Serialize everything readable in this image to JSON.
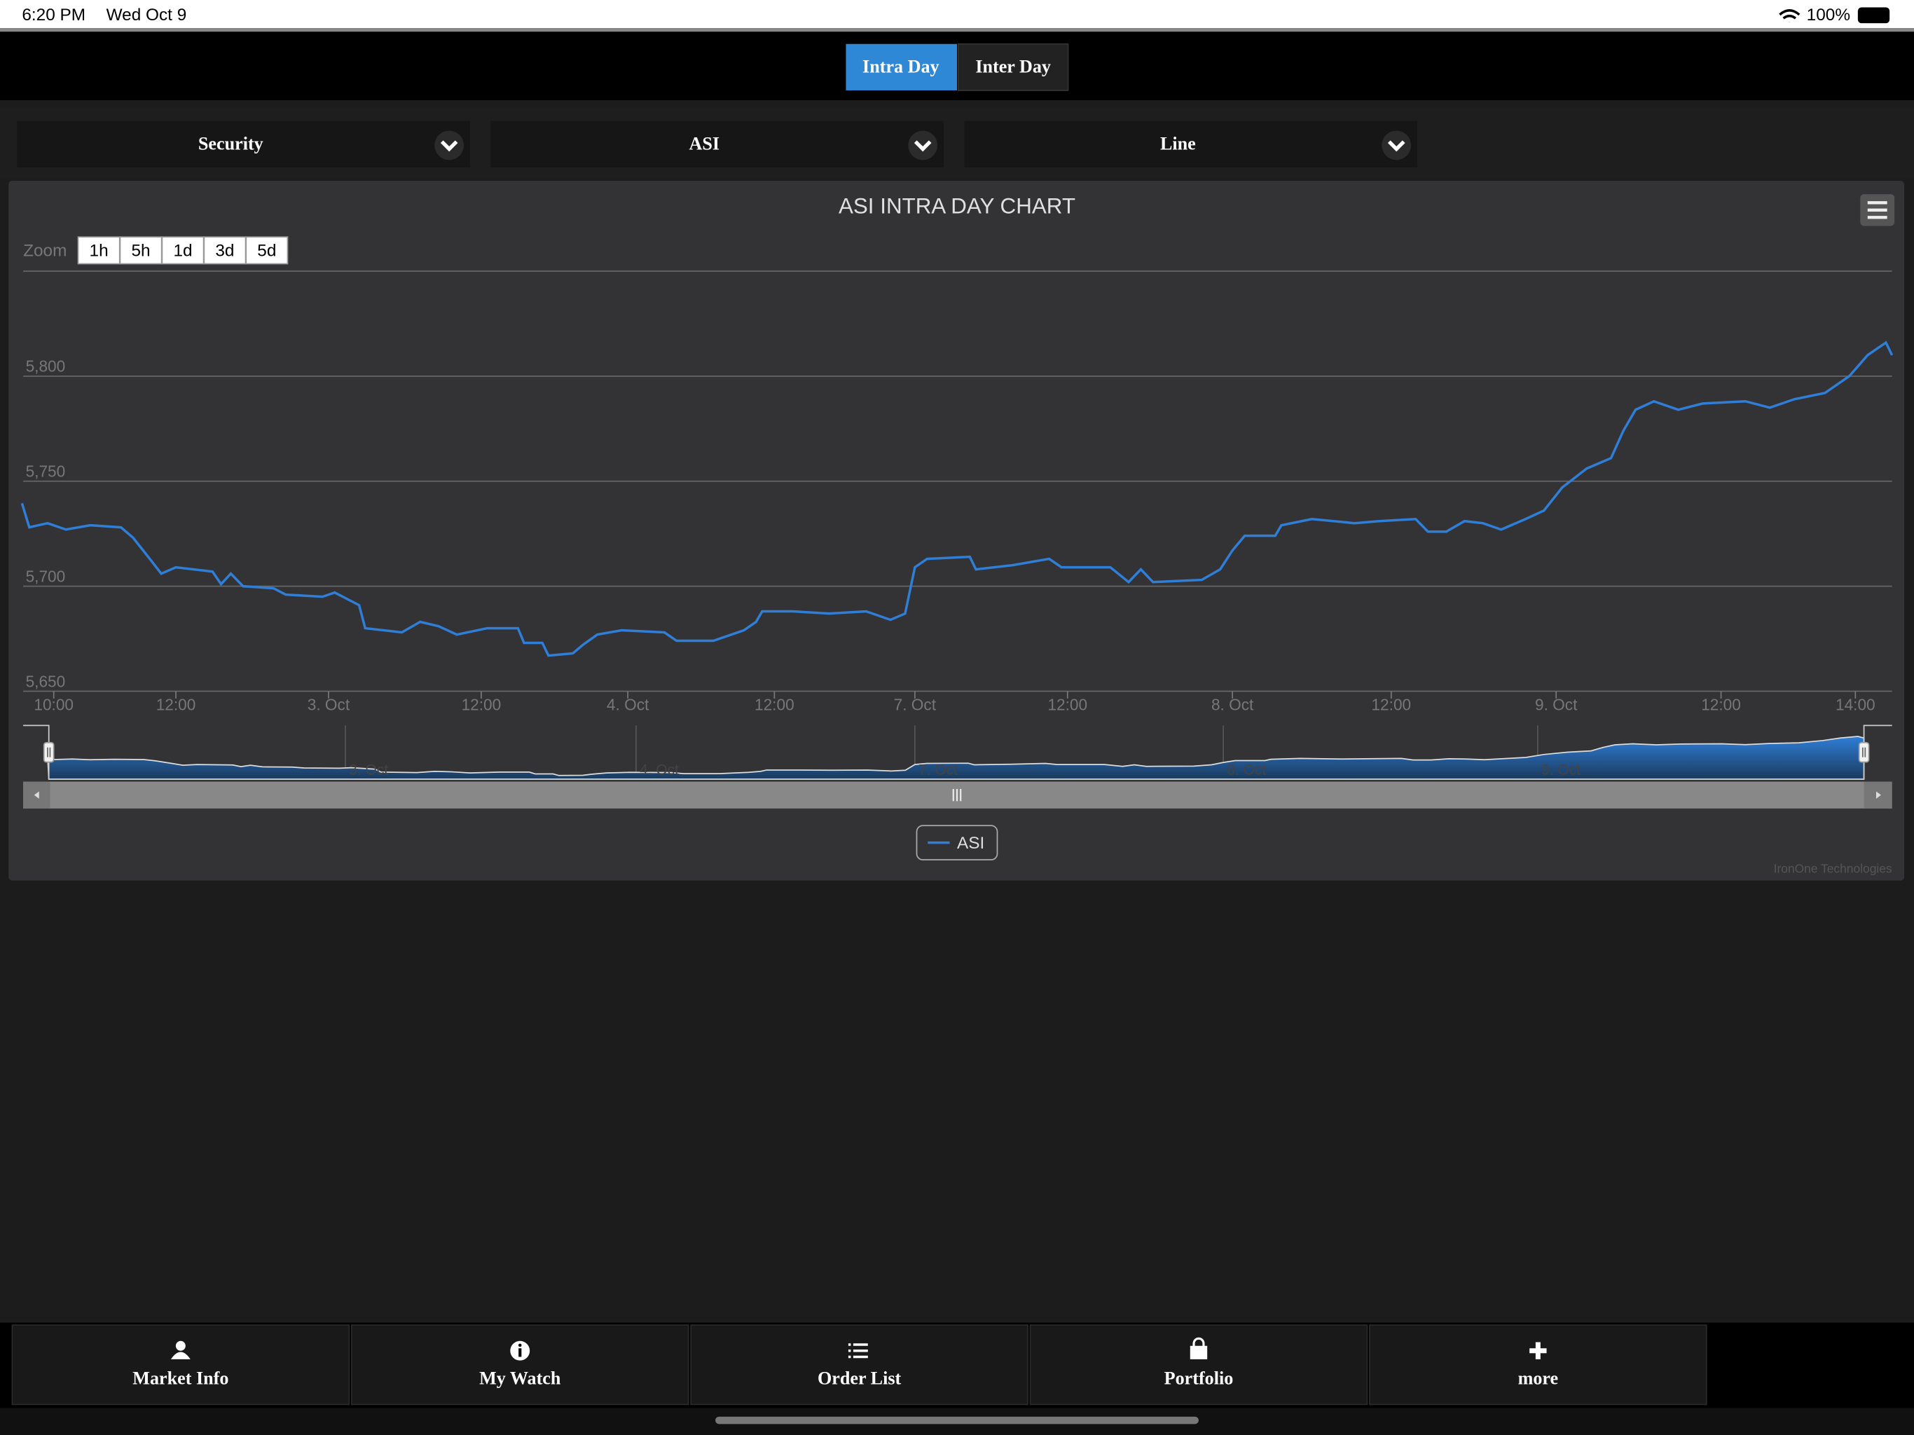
{
  "status_bar": {
    "time": "6:20 PM",
    "date": "Wed Oct 9",
    "battery": "100%"
  },
  "tabs": [
    "Intra Day",
    "Inter Day"
  ],
  "dropdowns": [
    "Security",
    "ASI",
    "Line"
  ],
  "chart_data": {
    "type": "line",
    "title": "ASI INTRA DAY CHART",
    "zoom_label": "Zoom",
    "zoom_buttons": [
      "1h",
      "5h",
      "1d",
      "3d",
      "5d"
    ],
    "x": [
      -0.52,
      -0.4,
      -0.1,
      0.2,
      0.6,
      1.1,
      1.3,
      1.6,
      1.76,
      2,
      2.6,
      2.74,
      2.9,
      3.1,
      3.6,
      3.8,
      4.4,
      4.6,
      5,
      5.1,
      5.7,
      6,
      6.3,
      6.6,
      7.1,
      7.6,
      7.7,
      8,
      8.1,
      8.5,
      8.66,
      8.9,
      9.3,
      10,
      10.2,
      10.8,
      11.3,
      11.5,
      11.6,
      12.1,
      12.7,
      13.3,
      13.7,
      13.94,
      14.1,
      14.3,
      15,
      15.1,
      15.7,
      16.3,
      16.5,
      17.3,
      17.6,
      17.8,
      18,
      18.8,
      19.1,
      19.3,
      19.5,
      20,
      20.1,
      20.6,
      21.3,
      21.7,
      22.3,
      22.5,
      22.8,
      23.1,
      23.4,
      23.7,
      24.1,
      24.4,
      24.7,
      25.1,
      25.5,
      25.7,
      25.9,
      26.2,
      26.6,
      27,
      27.7,
      28.1,
      28.5,
      29,
      29.4,
      29.7,
      30,
      30.1
    ],
    "series": [
      {
        "name": "ASI",
        "color": "#2f7ed8",
        "values": [
          5739.5,
          5728,
          5730,
          5727,
          5729,
          5728,
          5723,
          5712,
          5706,
          5709,
          5707,
          5701,
          5706,
          5700,
          5699,
          5696,
          5695,
          5697,
          5691,
          5680,
          5678,
          5683,
          5681,
          5677,
          5680,
          5680,
          5673,
          5673,
          5667,
          5668,
          5672,
          5677,
          5679,
          5678,
          5674,
          5674,
          5679,
          5683,
          5688,
          5688,
          5687,
          5688,
          5684,
          5687,
          5709,
          5713,
          5714,
          5708,
          5710,
          5713,
          5709,
          5709,
          5702,
          5708,
          5702,
          5703,
          5708,
          5717,
          5724,
          5724,
          5729,
          5732,
          5730,
          5731,
          5732,
          5726,
          5726,
          5731,
          5730,
          5727,
          5732,
          5736,
          5747,
          5756,
          5761,
          5774,
          5784,
          5788,
          5784,
          5787,
          5788,
          5785,
          5789,
          5792,
          5800,
          5810,
          5816,
          5810
        ]
      }
    ],
    "xlim": [
      -0.5,
      30.1
    ],
    "xticks": [
      {
        "value": 0,
        "label": "10:00"
      },
      {
        "value": 2,
        "label": "12:00"
      },
      {
        "value": 4.5,
        "label": "3. Oct"
      },
      {
        "value": 7,
        "label": "12:00"
      },
      {
        "value": 9.4,
        "label": "4. Oct"
      },
      {
        "value": 11.8,
        "label": "12:00"
      },
      {
        "value": 14.1,
        "label": "7. Oct"
      },
      {
        "value": 16.6,
        "label": "12:00"
      },
      {
        "value": 19.3,
        "label": "8. Oct"
      },
      {
        "value": 21.9,
        "label": "12:00"
      },
      {
        "value": 24.6,
        "label": "9. Oct"
      },
      {
        "value": 27.3,
        "label": "12:00"
      },
      {
        "value": 29.5,
        "label": "14:00"
      }
    ],
    "ylim": [
      5650,
      5850
    ],
    "yticks": [
      {
        "value": 5650,
        "label": "5,650"
      },
      {
        "value": 5700,
        "label": "5,700"
      },
      {
        "value": 5750,
        "label": "5,750"
      },
      {
        "value": 5800,
        "label": "5,800"
      }
    ],
    "navigator_ticks": [
      {
        "value": 4.5,
        "label": "3. Oct"
      },
      {
        "value": 9.4,
        "label": "4. Oct"
      },
      {
        "value": 14.1,
        "label": "7. Oct"
      },
      {
        "value": 19.3,
        "label": "8. Oct"
      },
      {
        "value": 24.6,
        "label": "9. Oct"
      }
    ],
    "grid": true,
    "credits": "IronOne Technologies"
  },
  "bottom_nav": [
    "Market Info",
    "My Watch",
    "Order List",
    "Portfolio",
    "more"
  ]
}
